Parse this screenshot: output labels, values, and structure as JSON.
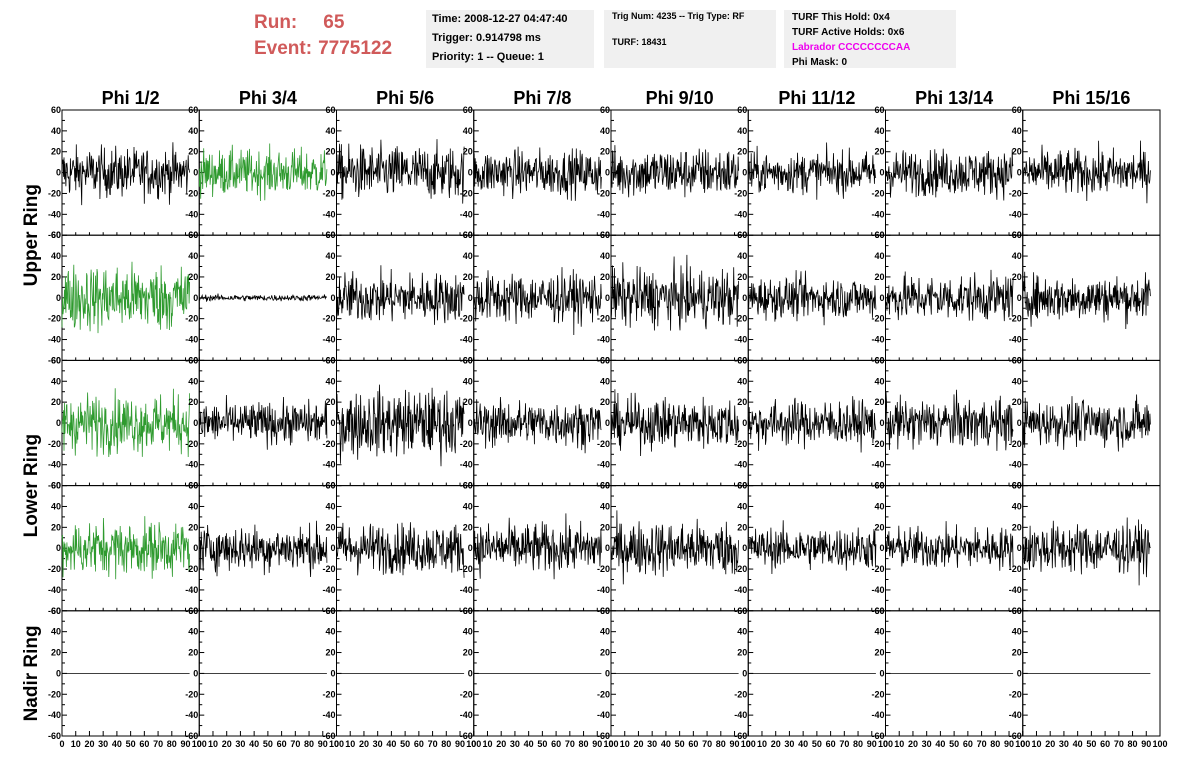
{
  "header": {
    "run_label": "Run:",
    "run_value": "65",
    "event_label": "Event:",
    "event_value": "7775122",
    "time": "Time: 2008-12-27 04:47:40",
    "trigger": "Trigger: 0.914798 ms",
    "priority": "Priority: 1 -- Queue: 1",
    "trig_num": "Trig Num: 4235 -- Trig Type: RF",
    "turf": "TURF: 18431",
    "turf_this_hold": "TURF This Hold: 0x4",
    "turf_active_holds": "TURF Active Holds: 0x6",
    "labrador": "Labrador CCCCCCCCAA",
    "phi_mask": "Phi Mask: 0"
  },
  "chart_data": {
    "type": "line",
    "title": "",
    "columns": [
      "Phi 1/2",
      "Phi 3/4",
      "Phi 5/6",
      "Phi 7/8",
      "Phi 9/10",
      "Phi 11/12",
      "Phi 13/14",
      "Phi 15/16"
    ],
    "ring_labels": [
      {
        "text": "Upper Ring",
        "rows": [
          0,
          1
        ]
      },
      {
        "text": "Lower Ring",
        "rows": [
          2,
          3
        ]
      },
      {
        "text": "Nadir Ring",
        "rows": [
          4
        ]
      }
    ],
    "xlim": [
      0,
      100
    ],
    "ylim": [
      -60,
      60
    ],
    "x_ticks": [
      "0",
      "10",
      "20",
      "30",
      "40",
      "50",
      "60",
      "70",
      "80",
      "90",
      "100"
    ],
    "y_ticks": [
      "60",
      "40",
      "20",
      "0",
      "-20",
      "-40",
      "-60"
    ],
    "samples": 260,
    "x_extent": 93,
    "colors": {
      "normal": "#000000",
      "highlight": "#2e9a2e"
    },
    "panels": [
      [
        {
          "amp": 12,
          "max": 40,
          "color": "black"
        },
        {
          "amp": 11,
          "max": 30,
          "color": "green"
        },
        {
          "amp": 13,
          "max": 35,
          "color": "black"
        },
        {
          "amp": 11,
          "max": 40,
          "color": "black"
        },
        {
          "amp": 12,
          "max": 38,
          "color": "black"
        },
        {
          "amp": 10,
          "max": 30,
          "color": "black"
        },
        {
          "amp": 11,
          "max": 35,
          "color": "black"
        },
        {
          "amp": 11,
          "max": 45,
          "color": "black"
        }
      ],
      [
        {
          "amp": 16,
          "max": 58,
          "color": "green"
        },
        {
          "amp": 1.5,
          "max": 5,
          "color": "black"
        },
        {
          "amp": 12,
          "max": 35,
          "color": "black"
        },
        {
          "amp": 12,
          "max": 40,
          "color": "black"
        },
        {
          "amp": 14,
          "max": 45,
          "color": "black"
        },
        {
          "amp": 10,
          "max": 35,
          "color": "black"
        },
        {
          "amp": 11,
          "max": 35,
          "color": "black"
        },
        {
          "amp": 11,
          "max": 35,
          "color": "black"
        }
      ],
      [
        {
          "amp": 14,
          "max": 45,
          "color": "green"
        },
        {
          "amp": 10,
          "max": 30,
          "color": "black"
        },
        {
          "amp": 16,
          "max": 50,
          "color": "black"
        },
        {
          "amp": 11,
          "max": 35,
          "color": "black"
        },
        {
          "amp": 12,
          "max": 35,
          "color": "black"
        },
        {
          "amp": 11,
          "max": 35,
          "color": "black"
        },
        {
          "amp": 12,
          "max": 40,
          "color": "black"
        },
        {
          "amp": 11,
          "max": 35,
          "color": "black"
        }
      ],
      [
        {
          "amp": 13,
          "max": 42,
          "color": "green"
        },
        {
          "amp": 11,
          "max": 45,
          "color": "black"
        },
        {
          "amp": 12,
          "max": 35,
          "color": "black"
        },
        {
          "amp": 12,
          "max": 35,
          "color": "black"
        },
        {
          "amp": 13,
          "max": 50,
          "color": "black"
        },
        {
          "amp": 10,
          "max": 35,
          "color": "black"
        },
        {
          "amp": 10,
          "max": 35,
          "color": "black"
        },
        {
          "amp": 12,
          "max": 50,
          "color": "black"
        }
      ],
      [
        {
          "amp": 0,
          "max": 0,
          "color": "black"
        },
        {
          "amp": 0,
          "max": 0,
          "color": "black"
        },
        {
          "amp": 0,
          "max": 0,
          "color": "black"
        },
        {
          "amp": 0,
          "max": 0,
          "color": "black"
        },
        {
          "amp": 0,
          "max": 0,
          "color": "black"
        },
        {
          "amp": 0,
          "max": 0,
          "color": "black"
        },
        {
          "amp": 0,
          "max": 0,
          "color": "black"
        },
        {
          "amp": 0,
          "max": 0,
          "color": "black"
        }
      ]
    ]
  }
}
